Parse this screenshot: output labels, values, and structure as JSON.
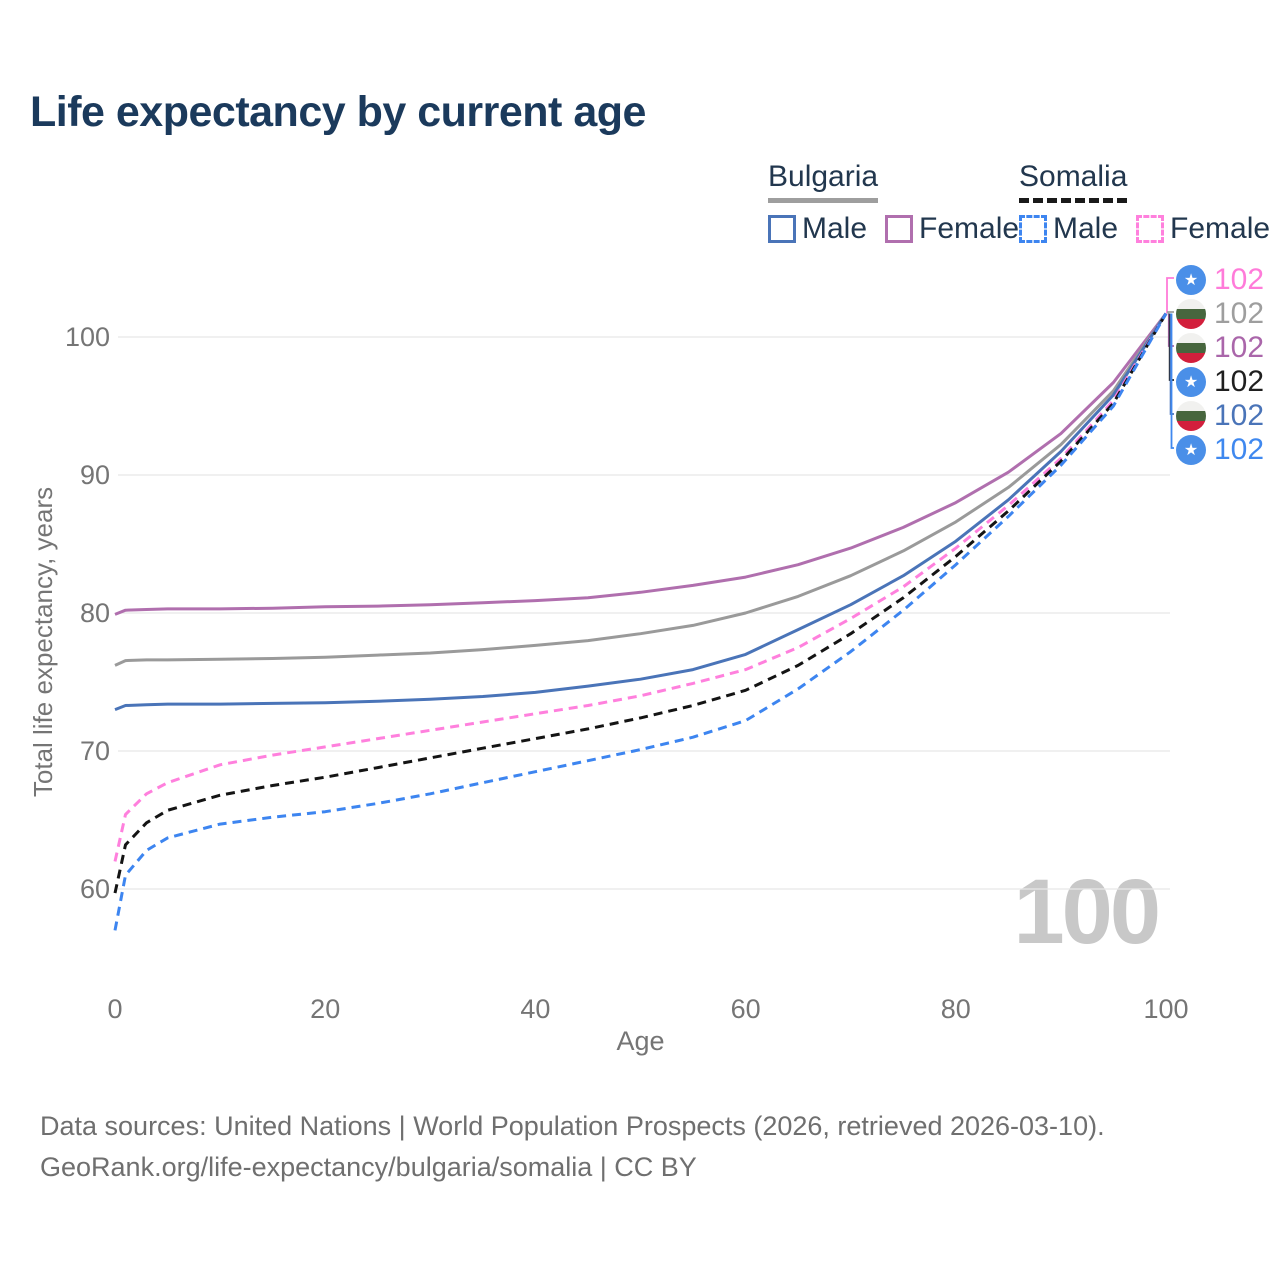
{
  "title": "Life expectancy by current age",
  "age_indicator": "100",
  "legend": {
    "groups": [
      {
        "id": "bulgaria",
        "label": "Bulgaria",
        "style": "solid",
        "items": [
          {
            "label": "Male",
            "color": "#4a74b8"
          },
          {
            "label": "Female",
            "color": "#b06fae"
          }
        ]
      },
      {
        "id": "somalia",
        "label": "Somalia",
        "style": "dashed",
        "items": [
          {
            "label": "Male",
            "color": "#3d85f0"
          },
          {
            "label": "Female",
            "color": "#ff80dd"
          }
        ]
      }
    ]
  },
  "chart_data": {
    "type": "line",
    "title": "Life expectancy by current age",
    "xlabel": "Age",
    "ylabel": "Total life expectancy, years",
    "xlim": [
      0,
      100
    ],
    "ylim": [
      55,
      104
    ],
    "xticks": [
      0,
      20,
      40,
      60,
      80,
      100
    ],
    "yticks": [
      60,
      70,
      80,
      90,
      100
    ],
    "grid": "horizontal",
    "grid_color": "#e8e8e8",
    "axis_text_color": "#757575",
    "x": [
      0,
      1,
      3,
      5,
      10,
      15,
      20,
      25,
      30,
      35,
      40,
      45,
      50,
      55,
      60,
      65,
      70,
      75,
      80,
      85,
      90,
      95,
      100
    ],
    "series": [
      {
        "name": "Bulgaria Female",
        "country": "bulgaria",
        "sex": "female",
        "style": "solid",
        "color": "#b06fae",
        "values": [
          79.9,
          80.2,
          80.25,
          80.3,
          80.3,
          80.35,
          80.45,
          80.5,
          80.6,
          80.75,
          80.9,
          81.1,
          81.5,
          82.0,
          82.6,
          83.5,
          84.7,
          86.2,
          88.0,
          90.2,
          93.0,
          96.7,
          101.7
        ]
      },
      {
        "name": "Bulgaria Both sexes",
        "country": "bulgaria",
        "sex": "both",
        "style": "solid",
        "color": "#9a9a9a",
        "values": [
          76.2,
          76.55,
          76.6,
          76.6,
          76.65,
          76.7,
          76.8,
          76.95,
          77.1,
          77.35,
          77.65,
          78.0,
          78.5,
          79.1,
          80.0,
          81.2,
          82.7,
          84.5,
          86.6,
          89.1,
          92.2,
          96.1,
          101.7
        ]
      },
      {
        "name": "Bulgaria Male",
        "country": "bulgaria",
        "sex": "male",
        "style": "solid",
        "color": "#4a74b8",
        "values": [
          73.0,
          73.3,
          73.35,
          73.4,
          73.4,
          73.45,
          73.5,
          73.6,
          73.75,
          73.95,
          74.25,
          74.7,
          75.2,
          75.9,
          77.0,
          78.8,
          80.6,
          82.7,
          85.2,
          88.2,
          91.7,
          95.8,
          101.7
        ]
      },
      {
        "name": "Somalia Female",
        "country": "somalia",
        "sex": "female",
        "style": "dashed",
        "color": "#ff80dd",
        "values": [
          62.0,
          65.4,
          66.9,
          67.7,
          69.0,
          69.7,
          70.3,
          70.9,
          71.5,
          72.1,
          72.7,
          73.3,
          74.0,
          74.9,
          75.9,
          77.5,
          79.6,
          81.9,
          84.7,
          87.8,
          91.2,
          95.4,
          101.7
        ]
      },
      {
        "name": "Somalia Both sexes",
        "country": "somalia",
        "sex": "both",
        "style": "dashed",
        "color": "#141414",
        "values": [
          59.7,
          63.2,
          64.8,
          65.7,
          66.8,
          67.5,
          68.1,
          68.8,
          69.5,
          70.2,
          70.9,
          71.6,
          72.4,
          73.3,
          74.4,
          76.2,
          78.5,
          81.1,
          84.1,
          87.4,
          91.0,
          95.2,
          101.7
        ]
      },
      {
        "name": "Somalia Male",
        "country": "somalia",
        "sex": "male",
        "style": "dashed",
        "color": "#3d85f0",
        "values": [
          57.0,
          61.0,
          62.8,
          63.7,
          64.7,
          65.2,
          65.6,
          66.2,
          66.9,
          67.7,
          68.5,
          69.3,
          70.1,
          71.0,
          72.2,
          74.5,
          77.2,
          80.2,
          83.5,
          87.0,
          90.7,
          95.0,
          101.7
        ]
      }
    ],
    "end_labels": [
      {
        "series": "Somalia Female",
        "flag": "somalia",
        "value": "102",
        "color": "#ff7bd9"
      },
      {
        "series": "Bulgaria Both sexes",
        "flag": "bulgaria",
        "value": "102",
        "color": "#9e9e9e"
      },
      {
        "series": "Bulgaria Female",
        "flag": "bulgaria",
        "value": "102",
        "color": "#aa66aa"
      },
      {
        "series": "Somalia Both sexes",
        "flag": "somalia",
        "value": "102",
        "color": "#1f1f1f"
      },
      {
        "series": "Bulgaria Male",
        "flag": "bulgaria",
        "value": "102",
        "color": "#4a74b8"
      },
      {
        "series": "Somalia Male",
        "flag": "somalia",
        "value": "102",
        "color": "#3f88ef"
      }
    ],
    "legend_position": "top-right"
  },
  "footer": {
    "line1": "Data sources: United Nations | World Population Prospects (2026, retrieved 2026-03-10).",
    "line2": "GeoRank.org/life-expectancy/bulgaria/somalia | CC BY"
  }
}
